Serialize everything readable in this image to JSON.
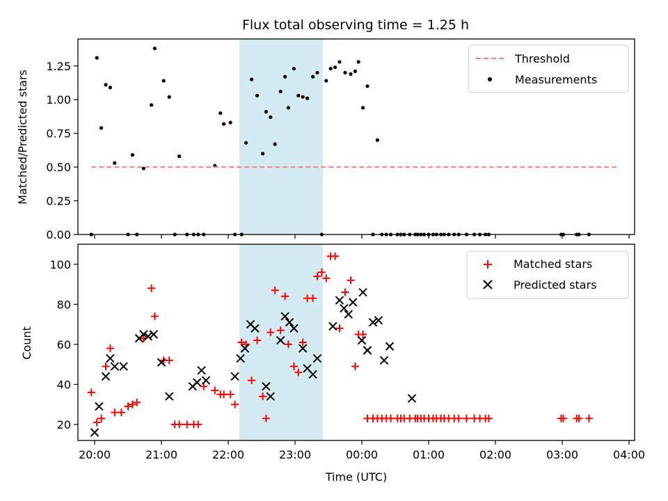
{
  "chart_data": [
    {
      "type": "scatter",
      "title": "Flux total observing time = 1.25 h",
      "xlabel": "",
      "ylabel": "Matched/Predicted stars",
      "xlim": [
        "19:45",
        "04:05"
      ],
      "ylim": [
        0,
        1.45
      ],
      "yticks": [
        "0.00",
        "0.25",
        "0.50",
        "0.75",
        "1.00",
        "1.25"
      ],
      "shaded_region": [
        "22:10",
        "23:25"
      ],
      "shade_color": "#d4ebf2",
      "legend_position": "top-right",
      "series": [
        {
          "name": "Threshold",
          "kind": "dashed-line",
          "color": "#ff7f7f",
          "x": [
            "19:57",
            "23:40",
            "03:50"
          ],
          "y": [
            0.5,
            0.5,
            0.5
          ]
        },
        {
          "name": "Measurements",
          "kind": "dot",
          "color": "#000000",
          "x": [
            "19:57",
            "20:02",
            "20:06",
            "20:10",
            "20:14",
            "20:18",
            "20:30",
            "20:34",
            "20:38",
            "20:44",
            "20:51",
            "20:54",
            "21:02",
            "21:07",
            "21:12",
            "21:16",
            "21:23",
            "21:29",
            "21:33",
            "21:38",
            "21:48",
            "21:53",
            "21:56",
            "22:02",
            "22:06",
            "22:12",
            "22:16",
            "22:21",
            "22:26",
            "22:31",
            "22:34",
            "22:38",
            "22:42",
            "22:47",
            "22:51",
            "22:54",
            "22:59",
            "23:03",
            "23:07",
            "23:11",
            "23:16",
            "23:20",
            "23:24",
            "23:28",
            "23:32",
            "23:36",
            "23:40",
            "23:45",
            "23:50",
            "23:54",
            "23:57",
            "00:01",
            "00:05",
            "00:10",
            "00:14",
            "00:18",
            "00:22",
            "00:26",
            "00:32",
            "00:35",
            "00:38",
            "00:43",
            "00:48",
            "00:50",
            "00:53",
            "00:56",
            "01:00",
            "01:04",
            "01:07",
            "01:11",
            "01:14",
            "01:18",
            "01:23",
            "01:27",
            "01:34",
            "01:41",
            "01:46",
            "01:51",
            "01:54",
            "02:59",
            "03:01",
            "03:13",
            "03:15",
            "03:24"
          ],
          "y": [
            0.0,
            1.31,
            0.79,
            1.11,
            1.09,
            0.53,
            0.0,
            0.59,
            0.0,
            0.49,
            0.96,
            1.38,
            1.14,
            1.02,
            0.0,
            0.58,
            0.0,
            0.0,
            0.0,
            0.0,
            0.51,
            0.9,
            0.82,
            0.83,
            0.0,
            0.0,
            0.68,
            1.15,
            1.03,
            0.6,
            0.91,
            0.87,
            0.67,
            1.06,
            1.17,
            0.94,
            1.23,
            1.03,
            1.02,
            1.01,
            1.17,
            1.2,
            0.0,
            1.14,
            1.23,
            1.24,
            1.28,
            1.2,
            1.19,
            1.21,
            1.28,
            0.94,
            1.1,
            0.0,
            0.7,
            0.0,
            0.0,
            0.0,
            0.0,
            0.0,
            0.0,
            0.0,
            0.0,
            0.0,
            0.0,
            0.0,
            0.0,
            0.0,
            0.0,
            0.0,
            0.0,
            0.0,
            0.0,
            0.0,
            0.0,
            0.0,
            0.0,
            0.0,
            0.0,
            0.0,
            0.0,
            0.0,
            0.0,
            0.0
          ]
        }
      ]
    },
    {
      "type": "scatter",
      "title": "",
      "xlabel": "Time (UTC)",
      "ylabel": "Count",
      "xlim": [
        "19:45",
        "04:05"
      ],
      "ylim": [
        12,
        110
      ],
      "xticks": [
        "20:00",
        "21:00",
        "22:00",
        "23:00",
        "00:00",
        "01:00",
        "02:00",
        "03:00",
        "04:00"
      ],
      "yticks": [
        "20",
        "40",
        "60",
        "80",
        "100"
      ],
      "shaded_region": [
        "22:10",
        "23:25"
      ],
      "shade_color": "#d4ebf2",
      "legend_position": "top-right",
      "series": [
        {
          "name": "Matched stars",
          "kind": "plus",
          "color": "#ff0000",
          "x": [
            "19:57",
            "20:02",
            "20:06",
            "20:10",
            "20:14",
            "20:18",
            "20:24",
            "20:30",
            "20:34",
            "20:38",
            "20:44",
            "20:51",
            "20:54",
            "21:02",
            "21:07",
            "21:12",
            "21:16",
            "21:23",
            "21:29",
            "21:33",
            "21:38",
            "21:48",
            "21:53",
            "21:56",
            "22:02",
            "22:06",
            "22:12",
            "22:16",
            "22:21",
            "22:26",
            "22:31",
            "22:34",
            "22:38",
            "22:42",
            "22:47",
            "22:51",
            "22:54",
            "22:59",
            "23:03",
            "23:07",
            "23:11",
            "23:16",
            "23:20",
            "23:24",
            "23:28",
            "23:32",
            "23:36",
            "23:40",
            "23:45",
            "23:50",
            "23:54",
            "23:57",
            "00:01",
            "00:05",
            "00:10",
            "00:14",
            "00:18",
            "00:22",
            "00:26",
            "00:32",
            "00:35",
            "00:38",
            "00:43",
            "00:48",
            "00:50",
            "00:53",
            "00:56",
            "01:00",
            "01:04",
            "01:07",
            "01:11",
            "01:14",
            "01:18",
            "01:23",
            "01:27",
            "01:34",
            "01:41",
            "01:46",
            "01:51",
            "01:54",
            "02:59",
            "03:01",
            "03:13",
            "03:15",
            "03:24"
          ],
          "y": [
            36,
            21,
            23,
            49,
            58,
            26,
            26,
            29,
            30,
            31,
            63,
            88,
            74,
            52,
            52,
            20,
            20,
            20,
            20,
            20,
            39,
            37,
            35,
            35,
            35,
            30,
            61,
            60,
            42,
            62,
            34,
            23,
            66,
            87,
            67,
            84,
            60,
            49,
            46,
            61,
            83,
            83,
            94,
            96,
            93,
            104,
            104,
            68,
            86,
            92,
            49,
            65,
            65,
            23,
            23,
            23,
            23,
            23,
            23,
            23,
            23,
            23,
            23,
            23,
            23,
            23,
            23,
            23,
            23,
            23,
            23,
            23,
            23,
            23,
            23,
            23,
            23,
            23,
            23,
            23,
            23,
            23,
            23,
            23,
            23
          ]
        },
        {
          "name": "Predicted stars",
          "kind": "x",
          "color": "#000000",
          "x": [
            "20:00",
            "20:04",
            "20:10",
            "20:14",
            "20:18",
            "20:26",
            "20:40",
            "20:44",
            "20:48",
            "20:53",
            "21:00",
            "21:07",
            "21:28",
            "21:32",
            "21:36",
            "21:40",
            "22:06",
            "22:11",
            "22:15",
            "22:20",
            "22:24",
            "22:34",
            "22:38",
            "22:47",
            "22:51",
            "22:55",
            "22:59",
            "23:07",
            "23:11",
            "23:16",
            "23:20",
            "23:34",
            "23:40",
            "23:44",
            "23:48",
            "23:52",
            "24:01",
            "24:05",
            "24:10",
            "24:15",
            "24:20",
            "24:25",
            "24:45",
            "00:00",
            "00:05"
          ],
          "y": [
            16,
            29,
            44,
            53,
            49,
            49,
            63,
            65,
            64,
            65,
            51,
            34,
            39,
            41,
            47,
            42,
            44,
            53,
            58,
            70,
            68,
            39,
            34,
            62,
            74,
            71,
            68,
            58,
            48,
            45,
            53,
            69,
            82,
            78,
            75,
            81,
            86,
            57,
            71,
            72,
            52,
            59,
            33,
            62,
            57
          ]
        }
      ]
    }
  ]
}
